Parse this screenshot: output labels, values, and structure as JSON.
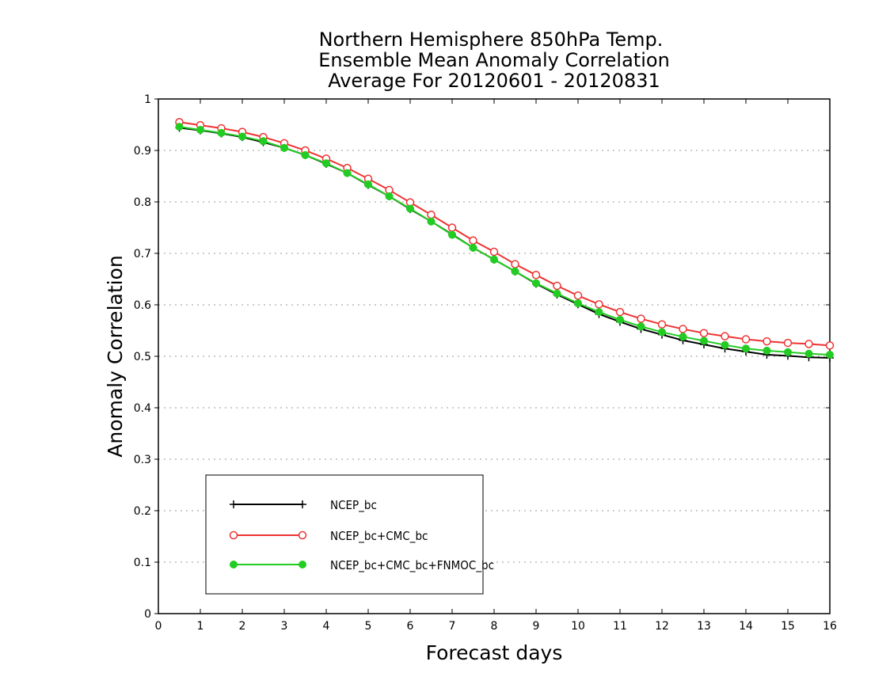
{
  "chart_data": {
    "type": "line",
    "title": [
      "Northern Hemisphere 850hPa Temp.",
      "Ensemble Mean Anomaly Correlation",
      "Average For 20120601 - 20120831"
    ],
    "xlabel": "Forecast days",
    "ylabel": "Anomaly Correlation",
    "xlim": [
      0,
      16
    ],
    "ylim": [
      0,
      1
    ],
    "x_ticks": [
      0,
      1,
      2,
      3,
      4,
      5,
      6,
      7,
      8,
      9,
      10,
      11,
      12,
      13,
      14,
      15,
      16
    ],
    "y_ticks": [
      0,
      0.1,
      0.2,
      0.3,
      0.4,
      0.5,
      0.6,
      0.7,
      0.8,
      0.9,
      1
    ],
    "y_tick_labels": [
      "0",
      "0.1",
      "0.2",
      "0.3",
      "0.4",
      "0.5",
      "0.6",
      "0.7",
      "0.8",
      "0.9",
      "1"
    ],
    "grid": "horizontal-dotted",
    "legend_placement": "bottom-left",
    "x": [
      0.5,
      1,
      1.5,
      2,
      2.5,
      3,
      3.5,
      4,
      4.5,
      5,
      5.5,
      6,
      6.5,
      7,
      7.5,
      8,
      8.5,
      9,
      9.5,
      10,
      10.5,
      11,
      11.5,
      12,
      12.5,
      13,
      13.5,
      14,
      14.5,
      15,
      15.5,
      16
    ],
    "series": [
      {
        "name": "NCEP_bc",
        "color": "#000000",
        "marker": "plus",
        "values": [
          0.944,
          0.939,
          0.933,
          0.926,
          0.916,
          0.905,
          0.891,
          0.874,
          0.856,
          0.833,
          0.811,
          0.786,
          0.762,
          0.737,
          0.711,
          0.688,
          0.665,
          0.641,
          0.62,
          0.601,
          0.582,
          0.567,
          0.553,
          0.542,
          0.531,
          0.523,
          0.515,
          0.509,
          0.503,
          0.501,
          0.498,
          0.497
        ]
      },
      {
        "name": "NCEP_bc+CMC_bc",
        "color": "#ee3333",
        "marker": "open-circle",
        "values": [
          0.955,
          0.949,
          0.943,
          0.936,
          0.926,
          0.914,
          0.9,
          0.884,
          0.866,
          0.845,
          0.823,
          0.799,
          0.775,
          0.75,
          0.725,
          0.703,
          0.679,
          0.658,
          0.637,
          0.618,
          0.601,
          0.586,
          0.573,
          0.562,
          0.553,
          0.545,
          0.539,
          0.533,
          0.529,
          0.526,
          0.524,
          0.521
        ]
      },
      {
        "name": "NCEP_bc+CMC_bc+FNMOC_bc",
        "color": "#22cc22",
        "marker": "filled-circle",
        "values": [
          0.946,
          0.94,
          0.934,
          0.927,
          0.918,
          0.905,
          0.891,
          0.875,
          0.856,
          0.834,
          0.811,
          0.787,
          0.762,
          0.736,
          0.711,
          0.688,
          0.665,
          0.642,
          0.622,
          0.603,
          0.586,
          0.571,
          0.558,
          0.547,
          0.538,
          0.53,
          0.522,
          0.515,
          0.511,
          0.508,
          0.505,
          0.503
        ]
      }
    ]
  }
}
